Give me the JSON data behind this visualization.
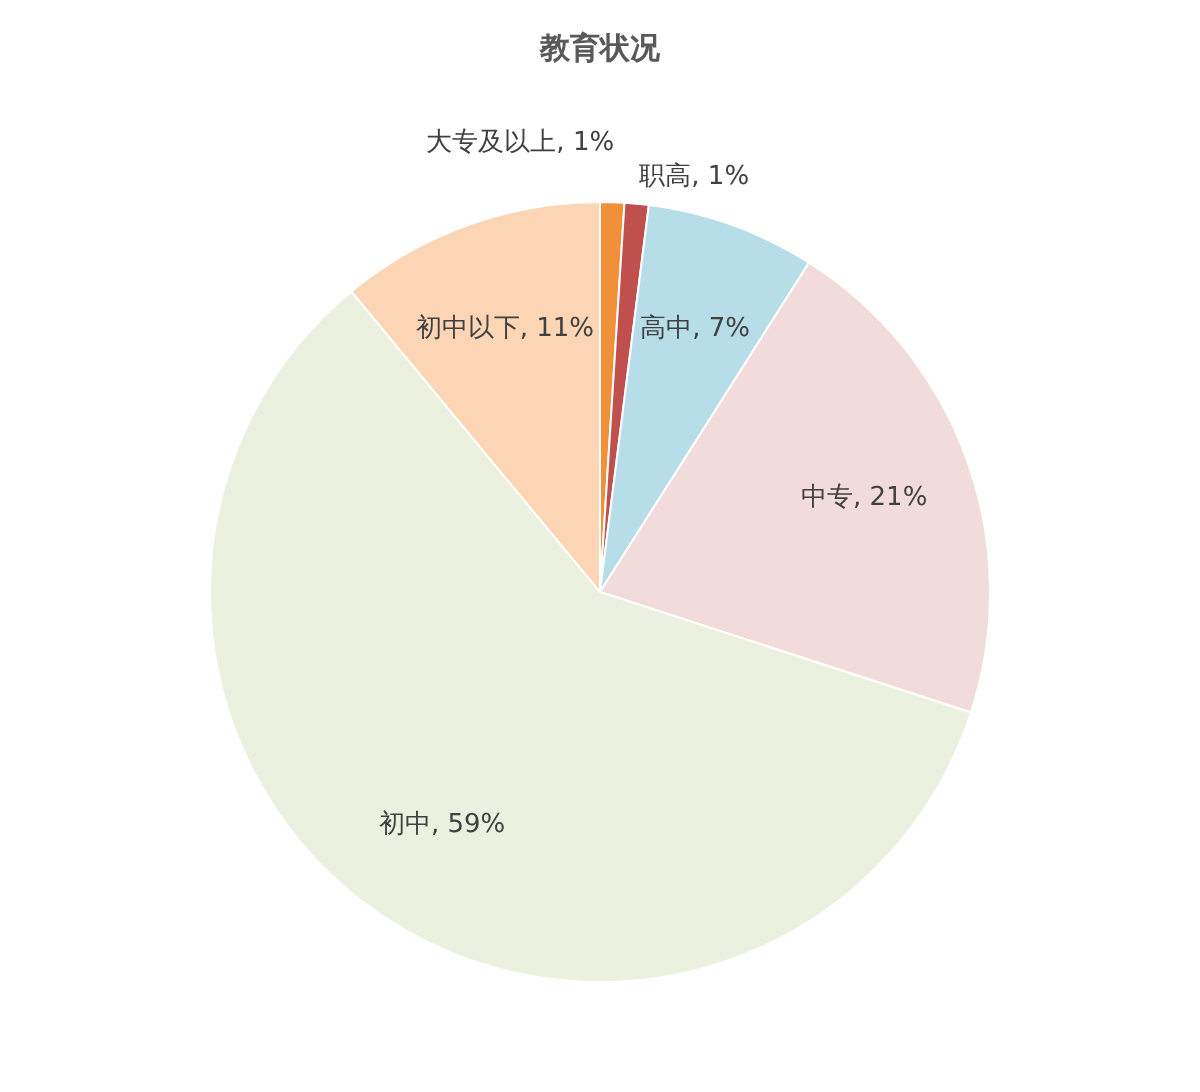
{
  "chart_data": {
    "type": "pie",
    "title": "教育状况",
    "categories": [
      "大专及以上",
      "职高",
      "高中",
      "中专",
      "初中",
      "初中以下"
    ],
    "values": [
      1,
      1,
      7,
      21,
      59,
      11
    ],
    "value_labels": [
      "1%",
      "1%",
      "7%",
      "21%",
      "59%",
      "11%"
    ],
    "colors": [
      "#f0913a",
      "#c0504d",
      "#b7dde8",
      "#f2dcdb",
      "#ebf1de",
      "#fcd5b5"
    ],
    "legend": false
  }
}
